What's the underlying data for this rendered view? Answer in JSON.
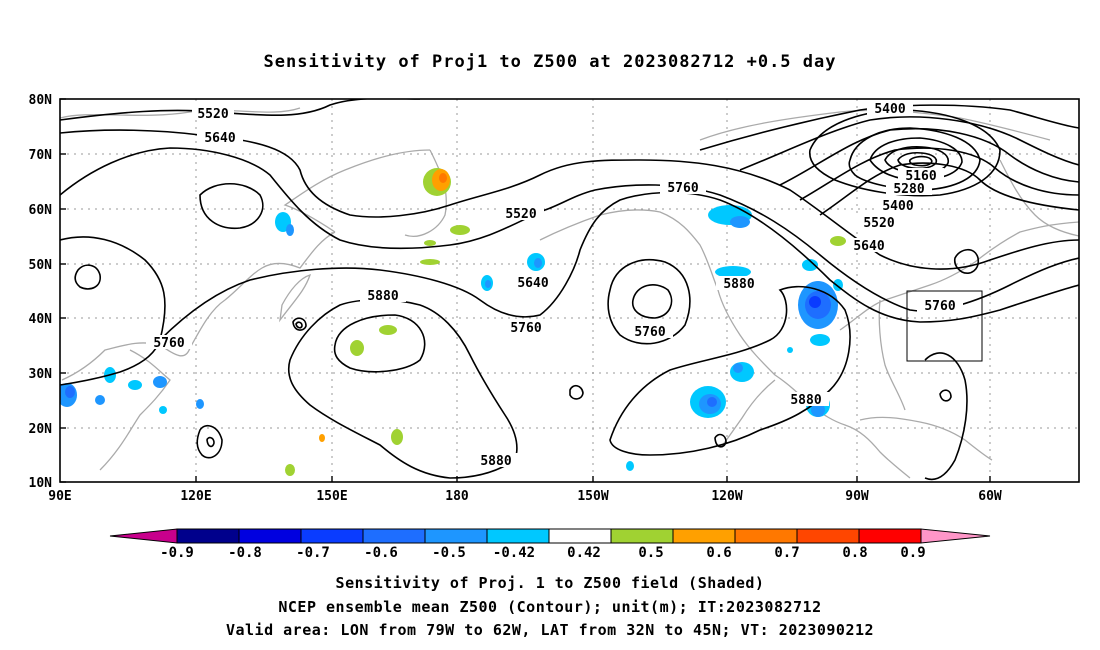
{
  "title": "Sensitivity of Proj1 to Z500 at 2023082712 +0.5 day",
  "lon_labels": [
    "90E",
    "120E",
    "150E",
    "180",
    "150W",
    "120W",
    "90W",
    "60W"
  ],
  "lat_labels": [
    "80N",
    "70N",
    "60N",
    "50N",
    "40N",
    "30N",
    "20N",
    "10N"
  ],
  "contour_labels": [
    {
      "text": "5520"
    },
    {
      "text": "5640"
    },
    {
      "text": "5520"
    },
    {
      "text": "5640"
    },
    {
      "text": "5760"
    },
    {
      "text": "5760"
    },
    {
      "text": "5880"
    },
    {
      "text": "5880"
    },
    {
      "text": "5760"
    },
    {
      "text": "5760"
    },
    {
      "text": "5880"
    },
    {
      "text": "5880"
    },
    {
      "text": "5400"
    },
    {
      "text": "5160"
    },
    {
      "text": "5280"
    },
    {
      "text": "5400"
    },
    {
      "text": "5520"
    },
    {
      "text": "5640"
    },
    {
      "text": "5760"
    }
  ],
  "colorbar": {
    "labels": [
      "-0.9",
      "-0.8",
      "-0.7",
      "-0.6",
      "-0.5",
      "-0.42",
      "0.42",
      "0.5",
      "0.6",
      "0.7",
      "0.8",
      "0.9"
    ],
    "colors": [
      "#00008c",
      "#0000e0",
      "#0a3cff",
      "#1e6eff",
      "#1e96ff",
      "#00c8ff",
      "#ffffff",
      "#a0d232",
      "#ffa000",
      "#ff7800",
      "#ff4600",
      "#ff0000"
    ],
    "low_color": "#c8008c",
    "high_color": "#ff96c8"
  },
  "captions": [
    "Sensitivity of Proj. 1 to Z500 field (Shaded)",
    "NCEP ensemble mean Z500 (Contour); unit(m); IT:2023082712",
    "Valid area: LON from 79W to 62W, LAT from 32N to 45N; VT: 2023090212"
  ]
}
